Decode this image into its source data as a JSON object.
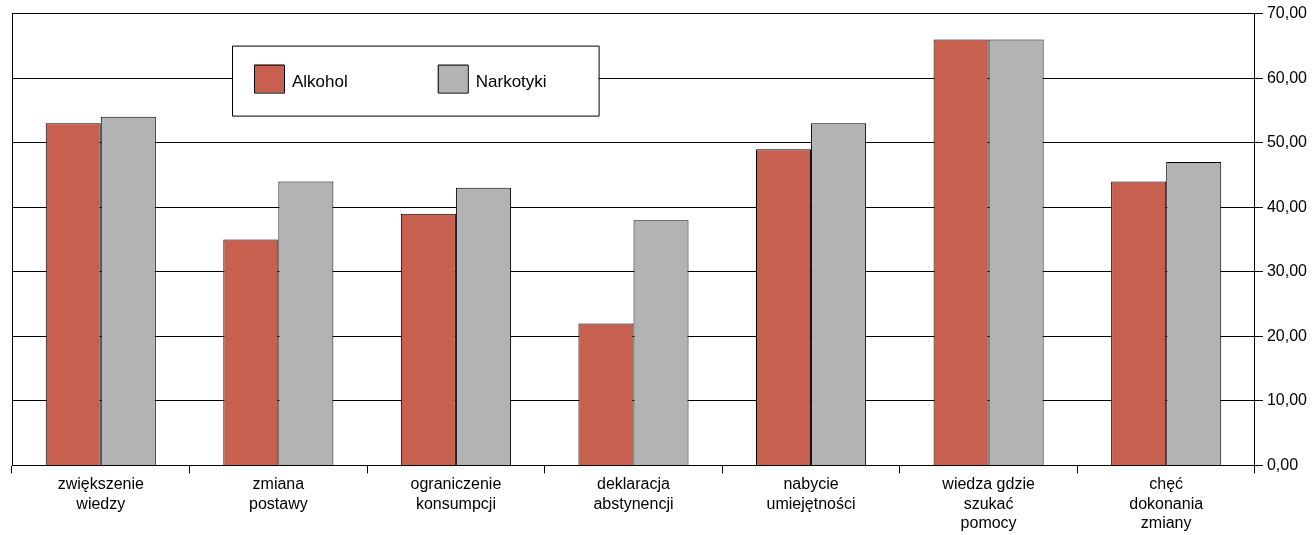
{
  "chart_data": {
    "type": "bar",
    "categories": [
      "zwiększenie wiedzy",
      "zmiana postawy",
      "ograniczenie konsumpcji",
      "deklaracja abstynencji",
      "nabycie umiejętności",
      "wiedza gdzie szukać pomocy",
      "chęć dokonania zmiany"
    ],
    "series": [
      {
        "name": "Alkohol",
        "color": "#c8604f",
        "values": [
          53,
          35,
          39,
          22,
          49,
          66,
          44
        ]
      },
      {
        "name": "Narkotyki",
        "color": "#b2b3b5",
        "values": [
          54,
          44,
          43,
          38,
          53,
          66,
          47
        ]
      }
    ],
    "ylim": [
      0,
      70
    ],
    "yticks": [
      {
        "value": 0,
        "label": "0,00"
      },
      {
        "value": 10,
        "label": "10,00"
      },
      {
        "value": 20,
        "label": "20,00"
      },
      {
        "value": 30,
        "label": "30,00"
      },
      {
        "value": 40,
        "label": "40,00"
      },
      {
        "value": 50,
        "label": "50,00"
      },
      {
        "value": 60,
        "label": "60,00"
      },
      {
        "value": 70,
        "label": "70,00"
      }
    ],
    "grid": "y",
    "legend": "top left"
  }
}
